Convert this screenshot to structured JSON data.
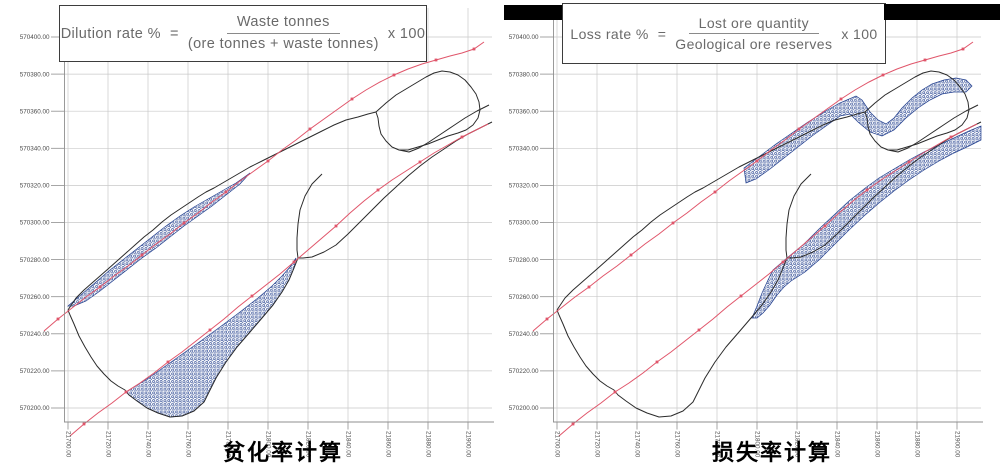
{
  "panels": [
    {
      "id": "dilution",
      "formula": {
        "lhs": "Dilution rate %",
        "equals": "=",
        "numerator": "Waste tonnes",
        "denominator": "(ore tonnes + waste tonnes)",
        "multiplier": "x 100"
      },
      "caption": "贫化率计算",
      "x_tick_labels": [
        "21700.00",
        "21720.00",
        "21740.00",
        "21760.00",
        "21780.00",
        "21800.00",
        "21820.00",
        "21840.00",
        "21860.00",
        "21880.00",
        "21900.00"
      ],
      "y_tick_labels": [
        "570400.00",
        "570380.00",
        "570360.00",
        "570340.00",
        "570320.00",
        "570300.00",
        "570280.00",
        "570260.00",
        "570240.00",
        "570220.00",
        "570200.00"
      ]
    },
    {
      "id": "loss",
      "formula": {
        "lhs": "Loss rate %",
        "equals": "=",
        "numerator": "Lost ore quantity",
        "denominator": "Geological ore reserves",
        "multiplier": "x 100"
      },
      "caption": "损失率计算",
      "x_tick_labels": [
        "21700.00",
        "21720.00",
        "21740.00",
        "21760.00",
        "21780.00",
        "21800.00",
        "21820.00",
        "21840.00",
        "21860.00",
        "21880.00",
        "21900.00"
      ],
      "y_tick_labels": [
        "570400.00",
        "570380.00",
        "570360.00",
        "570340.00",
        "570320.00",
        "570300.00",
        "570280.00",
        "570260.00",
        "570240.00",
        "570220.00",
        "570200.00"
      ]
    }
  ],
  "colors": {
    "grid": "#c9c9c9",
    "axis": "#8f8f8f",
    "ore_outline": "#2b2b2b",
    "stope_line": "#e0556a",
    "hatch": "#24418f",
    "tick_label": "#4d4d4d",
    "formula_text": "#6a6a6a",
    "caption": "#000000",
    "redaction_bar": "#000000"
  }
}
